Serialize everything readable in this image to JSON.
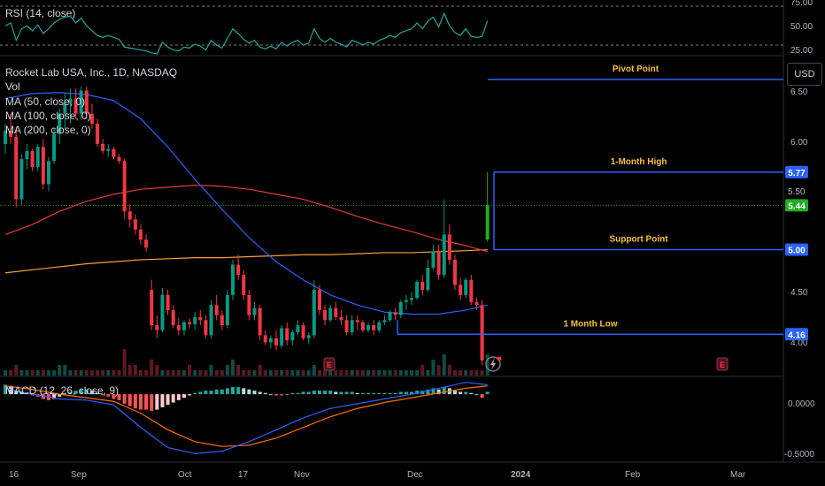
{
  "chart_data": {
    "type": "candlestick",
    "symbol": "Rocket Lab USA, Inc., 1D, NASDAQ",
    "currency": "USD",
    "x_ticks": [
      "16",
      "Sep",
      "Oct",
      "17",
      "Nov",
      "Dec",
      "2024",
      "Feb",
      "Mar"
    ],
    "price_ticks": [
      "6.50",
      "6.00",
      "5.50",
      "4.50",
      "4.00"
    ],
    "indicators": {
      "volume_label": "Vol",
      "ma_labels": [
        "MA (50, close, 0)",
        "MA (100, close, 0)",
        "MA (200, close, 0)"
      ],
      "rsi_label": "RSI (14, close)",
      "rsi_ticks": [
        "75.00",
        "50.00",
        "25.00"
      ],
      "macd_label": "MACD (12, 26, close, 9)",
      "macd_ticks": [
        "0.0000",
        "-0.5000"
      ]
    },
    "price_range": [
      3.75,
      6.9
    ],
    "candles": [
      [
        6.05,
        6.25,
        5.95,
        6.18
      ],
      [
        6.18,
        6.35,
        6.05,
        6.12
      ],
      [
        6.12,
        6.22,
        5.42,
        5.5
      ],
      [
        5.5,
        5.95,
        5.45,
        5.9
      ],
      [
        5.9,
        6.05,
        5.8,
        5.98
      ],
      [
        5.98,
        6.0,
        5.78,
        5.82
      ],
      [
        5.82,
        6.05,
        5.78,
        6.02
      ],
      [
        6.02,
        6.1,
        5.6,
        5.65
      ],
      [
        5.65,
        5.92,
        5.58,
        5.88
      ],
      [
        5.88,
        6.2,
        5.85,
        6.15
      ],
      [
        6.15,
        6.4,
        6.05,
        6.35
      ],
      [
        6.35,
        6.55,
        6.2,
        6.45
      ],
      [
        6.45,
        6.6,
        6.25,
        6.5
      ],
      [
        6.5,
        6.6,
        6.3,
        6.35
      ],
      [
        6.35,
        6.62,
        6.3,
        6.58
      ],
      [
        6.58,
        6.62,
        6.3,
        6.35
      ],
      [
        6.35,
        6.45,
        6.2,
        6.25
      ],
      [
        6.25,
        6.3,
        6.02,
        6.05
      ],
      [
        6.05,
        6.1,
        5.95,
        5.98
      ],
      [
        5.98,
        6.05,
        5.92,
        6.0
      ],
      [
        6.0,
        6.02,
        5.9,
        5.92
      ],
      [
        5.92,
        5.95,
        5.85,
        5.88
      ],
      [
        5.88,
        5.9,
        5.3,
        5.38
      ],
      [
        5.38,
        5.45,
        5.22,
        5.3
      ],
      [
        5.3,
        5.35,
        5.15,
        5.2
      ],
      [
        5.2,
        5.25,
        5.05,
        5.1
      ],
      [
        5.1,
        5.15,
        4.98,
        5.02
      ],
      [
        4.6,
        4.7,
        4.2,
        4.25
      ],
      [
        4.25,
        4.35,
        4.12,
        4.2
      ],
      [
        4.2,
        4.62,
        4.18,
        4.55
      ],
      [
        4.55,
        4.6,
        4.35,
        4.4
      ],
      [
        4.4,
        4.45,
        4.22,
        4.25
      ],
      [
        4.25,
        4.32,
        4.15,
        4.2
      ],
      [
        4.2,
        4.3,
        4.15,
        4.28
      ],
      [
        4.28,
        4.32,
        4.22,
        4.26
      ],
      [
        4.26,
        4.38,
        4.2,
        4.33
      ],
      [
        4.33,
        4.4,
        4.25,
        4.3
      ],
      [
        4.3,
        4.35,
        4.12,
        4.15
      ],
      [
        4.15,
        4.5,
        4.12,
        4.45
      ],
      [
        4.45,
        4.55,
        4.3,
        4.35
      ],
      [
        4.35,
        4.4,
        4.2,
        4.25
      ],
      [
        4.25,
        4.6,
        4.22,
        4.55
      ],
      [
        4.55,
        4.9,
        4.5,
        4.85
      ],
      [
        4.85,
        4.95,
        4.7,
        4.75
      ],
      [
        4.75,
        4.8,
        4.5,
        4.55
      ],
      [
        4.55,
        4.6,
        4.3,
        4.35
      ],
      [
        4.35,
        4.48,
        4.3,
        4.42
      ],
      [
        4.42,
        4.45,
        4.1,
        4.15
      ],
      [
        4.15,
        4.2,
        4.05,
        4.08
      ],
      [
        4.08,
        4.15,
        4.02,
        4.12
      ],
      [
        4.12,
        4.2,
        4.0,
        4.05
      ],
      [
        4.05,
        4.25,
        4.02,
        4.22
      ],
      [
        4.22,
        4.28,
        4.05,
        4.1
      ],
      [
        4.1,
        4.2,
        4.05,
        4.18
      ],
      [
        4.18,
        4.3,
        4.15,
        4.25
      ],
      [
        4.25,
        4.28,
        4.1,
        4.12
      ],
      [
        4.12,
        4.18,
        4.06,
        4.15
      ],
      [
        4.15,
        4.7,
        4.12,
        4.6
      ],
      [
        4.6,
        4.65,
        4.35,
        4.4
      ],
      [
        4.4,
        4.45,
        4.25,
        4.3
      ],
      [
        4.3,
        4.45,
        4.28,
        4.42
      ],
      [
        4.42,
        4.48,
        4.3,
        4.33
      ],
      [
        4.33,
        4.4,
        4.25,
        4.3
      ],
      [
        4.3,
        4.35,
        4.15,
        4.18
      ],
      [
        4.18,
        4.35,
        4.15,
        4.3
      ],
      [
        4.3,
        4.35,
        4.2,
        4.28
      ],
      [
        4.28,
        4.3,
        4.18,
        4.2
      ],
      [
        4.2,
        4.28,
        4.18,
        4.25
      ],
      [
        4.25,
        4.3,
        4.15,
        4.2
      ],
      [
        4.2,
        4.3,
        4.18,
        4.28
      ],
      [
        4.28,
        4.35,
        4.25,
        4.3
      ],
      [
        4.3,
        4.4,
        4.28,
        4.38
      ],
      [
        4.38,
        4.42,
        4.3,
        4.35
      ],
      [
        4.35,
        4.5,
        4.32,
        4.48
      ],
      [
        4.48,
        4.55,
        4.4,
        4.5
      ],
      [
        4.5,
        4.58,
        4.45,
        4.52
      ],
      [
        4.52,
        4.7,
        4.5,
        4.68
      ],
      [
        4.68,
        4.75,
        4.55,
        4.6
      ],
      [
        4.6,
        4.9,
        4.58,
        4.82
      ],
      [
        4.82,
        5.05,
        4.8,
        4.98
      ],
      [
        4.98,
        5.05,
        4.7,
        4.75
      ],
      [
        4.75,
        5.5,
        4.72,
        5.15
      ],
      [
        5.15,
        5.25,
        4.85,
        4.9
      ],
      [
        4.9,
        4.95,
        4.6,
        4.65
      ],
      [
        4.65,
        4.72,
        4.5,
        4.55
      ],
      [
        4.55,
        4.72,
        4.52,
        4.7
      ],
      [
        4.7,
        4.75,
        4.45,
        4.48
      ],
      [
        4.48,
        4.52,
        4.4,
        4.45
      ],
      [
        4.45,
        4.5,
        3.85,
        3.9
      ],
      [
        5.1,
        5.77,
        5.08,
        5.44
      ]
    ],
    "ma50": [
      [
        0,
        6.5
      ],
      [
        5,
        6.55
      ],
      [
        10,
        6.56
      ],
      [
        15,
        6.54
      ],
      [
        20,
        6.48
      ],
      [
        25,
        6.3
      ],
      [
        30,
        6.02
      ],
      [
        35,
        5.7
      ],
      [
        40,
        5.4
      ],
      [
        45,
        5.12
      ],
      [
        50,
        4.88
      ],
      [
        55,
        4.7
      ],
      [
        60,
        4.55
      ],
      [
        65,
        4.45
      ],
      [
        70,
        4.38
      ],
      [
        75,
        4.36
      ],
      [
        80,
        4.36
      ],
      [
        85,
        4.4
      ],
      [
        89,
        4.45
      ]
    ],
    "ma100": [
      [
        0,
        5.15
      ],
      [
        5,
        5.25
      ],
      [
        10,
        5.38
      ],
      [
        15,
        5.48
      ],
      [
        20,
        5.55
      ],
      [
        25,
        5.6
      ],
      [
        30,
        5.62
      ],
      [
        35,
        5.64
      ],
      [
        40,
        5.63
      ],
      [
        45,
        5.6
      ],
      [
        50,
        5.55
      ],
      [
        55,
        5.5
      ],
      [
        60,
        5.42
      ],
      [
        65,
        5.33
      ],
      [
        70,
        5.25
      ],
      [
        75,
        5.18
      ],
      [
        80,
        5.1
      ],
      [
        85,
        5.04
      ],
      [
        89,
        4.98
      ]
    ],
    "ma200": [
      [
        0,
        4.77
      ],
      [
        5,
        4.8
      ],
      [
        10,
        4.83
      ],
      [
        15,
        4.86
      ],
      [
        20,
        4.88
      ],
      [
        25,
        4.9
      ],
      [
        30,
        4.91
      ],
      [
        35,
        4.92
      ],
      [
        40,
        4.92
      ],
      [
        45,
        4.93
      ],
      [
        50,
        4.94
      ],
      [
        55,
        4.95
      ],
      [
        60,
        4.95
      ],
      [
        65,
        4.96
      ],
      [
        70,
        4.97
      ],
      [
        75,
        4.97
      ],
      [
        80,
        4.98
      ],
      [
        85,
        4.99
      ],
      [
        89,
        5.0
      ]
    ],
    "levels": [
      {
        "name": "Pivot Point",
        "value": 6.69
      },
      {
        "name": "1-Month High",
        "value": 5.77
      },
      {
        "name": "Support Point",
        "value": 5.0
      },
      {
        "name": "1 Month Low",
        "value": 4.16
      }
    ],
    "current_price": 5.44,
    "current_price_label": "5.44",
    "hidden_tick_label": "5.50",
    "level_badges": [
      "5.77",
      "5.00",
      "4.16"
    ],
    "earnings_marker": "E",
    "rsi_range": [
      25,
      80
    ],
    "rsi": [
      55,
      58,
      40,
      52,
      55,
      50,
      56,
      47,
      52,
      58,
      62,
      64,
      65,
      58,
      63,
      55,
      50,
      45,
      43,
      45,
      43,
      41,
      33,
      32,
      31,
      30,
      29,
      27,
      26,
      38,
      33,
      30,
      29,
      33,
      32,
      36,
      34,
      30,
      40,
      35,
      32,
      42,
      52,
      47,
      41,
      37,
      40,
      33,
      31,
      34,
      31,
      38,
      34,
      38,
      40,
      35,
      37,
      52,
      42,
      38,
      42,
      38,
      36,
      33,
      40,
      38,
      35,
      38,
      36,
      40,
      42,
      45,
      43,
      48,
      50,
      52,
      58,
      52,
      60,
      64,
      54,
      68,
      55,
      48,
      45,
      52,
      44,
      43,
      44,
      60
    ],
    "macd_range": [
      -0.55,
      0.12
    ],
    "macd_hist": [
      0.08,
      0.07,
      0.03,
      0.02,
      0.01,
      -0.01,
      -0.02,
      -0.04,
      -0.05,
      -0.04,
      -0.02,
      0.0,
      0.02,
      0.03,
      0.04,
      0.04,
      0.03,
      0.01,
      -0.01,
      -0.02,
      -0.04,
      -0.05,
      -0.08,
      -0.1,
      -0.12,
      -0.13,
      -0.13,
      -0.14,
      -0.13,
      -0.11,
      -0.09,
      -0.07,
      -0.05,
      -0.03,
      -0.01,
      0.01,
      0.02,
      0.03,
      0.03,
      0.04,
      0.04,
      0.05,
      0.06,
      0.06,
      0.05,
      0.04,
      0.03,
      0.02,
      0.01,
      0.0,
      -0.01,
      -0.01,
      0.0,
      0.01,
      0.01,
      0.02,
      0.02,
      0.03,
      0.03,
      0.03,
      0.03,
      0.02,
      0.02,
      0.02,
      0.02,
      0.01,
      0.01,
      0.01,
      0.01,
      0.01,
      0.01,
      0.01,
      0.01,
      0.02,
      0.02,
      0.02,
      0.03,
      0.03,
      0.04,
      0.05,
      0.04,
      0.06,
      0.05,
      0.03,
      0.02,
      0.02,
      0.01,
      0.0,
      -0.03,
      0.02
    ],
    "macd_line": [
      [
        0,
        0.05
      ],
      [
        5,
        0.0
      ],
      [
        10,
        -0.04
      ],
      [
        15,
        -0.05
      ],
      [
        20,
        -0.09
      ],
      [
        25,
        -0.28
      ],
      [
        30,
        -0.45
      ],
      [
        35,
        -0.5
      ],
      [
        40,
        -0.48
      ],
      [
        45,
        -0.4
      ],
      [
        50,
        -0.3
      ],
      [
        55,
        -0.2
      ],
      [
        60,
        -0.12
      ],
      [
        65,
        -0.08
      ],
      [
        70,
        -0.04
      ],
      [
        75,
        0.0
      ],
      [
        80,
        0.05
      ],
      [
        85,
        0.1
      ],
      [
        89,
        0.08
      ]
    ],
    "signal_line": [
      [
        0,
        0.07
      ],
      [
        5,
        0.04
      ],
      [
        10,
        0.0
      ],
      [
        15,
        -0.03
      ],
      [
        20,
        -0.06
      ],
      [
        25,
        -0.16
      ],
      [
        30,
        -0.3
      ],
      [
        35,
        -0.4
      ],
      [
        40,
        -0.44
      ],
      [
        45,
        -0.43
      ],
      [
        50,
        -0.37
      ],
      [
        55,
        -0.28
      ],
      [
        60,
        -0.19
      ],
      [
        65,
        -0.12
      ],
      [
        70,
        -0.07
      ],
      [
        75,
        -0.03
      ],
      [
        80,
        0.01
      ],
      [
        85,
        0.05
      ],
      [
        89,
        0.07
      ]
    ],
    "volume": [
      1,
      1,
      2,
      1,
      1,
      1,
      1,
      1,
      1,
      1,
      2,
      2,
      1,
      1,
      1,
      1,
      1,
      1,
      1,
      1,
      1,
      1,
      5,
      2,
      2,
      1,
      1,
      3,
      2,
      1,
      1,
      1,
      1,
      1,
      2,
      1,
      1,
      1,
      2,
      1,
      1,
      2,
      3,
      2,
      1,
      1,
      1,
      2,
      1,
      1,
      1,
      1,
      1,
      1,
      1,
      1,
      1,
      2,
      1,
      1,
      1,
      1,
      1,
      1,
      1,
      1,
      1,
      1,
      1,
      1,
      1,
      1,
      1,
      1,
      1,
      1,
      1,
      2,
      1,
      3,
      2,
      4,
      2,
      1,
      1,
      1,
      1,
      1,
      1,
      4
    ]
  },
  "colors": {
    "up": "#089981",
    "up_bright": "#22ab24",
    "down": "#f23645",
    "ma50": "#2962ff",
    "ma100": "#e53935",
    "ma200": "#f7a23a",
    "rsi": "#26a69a",
    "level_line": "#2962ff",
    "badge": "#2962ff",
    "price_badge": "#22ab24",
    "macd": "#2962ff",
    "signal": "#ff6d00"
  }
}
